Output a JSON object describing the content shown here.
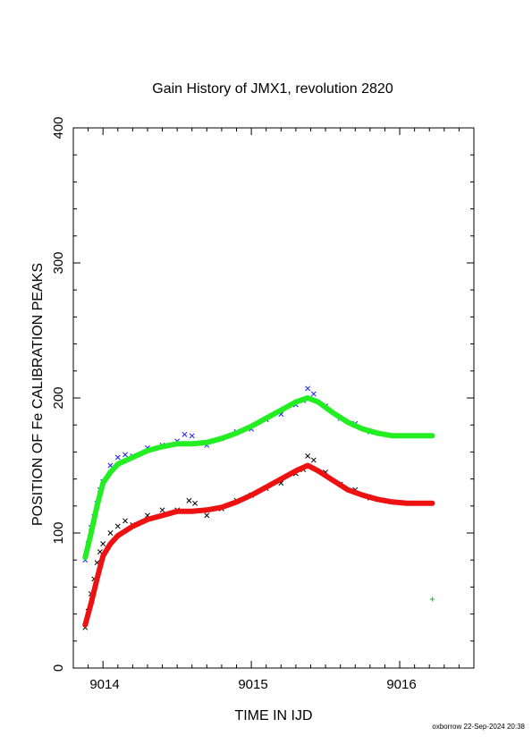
{
  "chart_data": {
    "type": "scatter",
    "title": "Gain History of JMX1, revolution 2820",
    "xlabel": "TIME IN IJD",
    "ylabel": "POSITION OF Fe CALIBRATION PEAKS",
    "xlim": [
      9013.8,
      9016.5
    ],
    "ylim": [
      0,
      400
    ],
    "x_ticks": [
      "9014",
      "9015",
      "9016"
    ],
    "y_ticks": [
      "0",
      "100",
      "200",
      "300",
      "400"
    ],
    "grid": false,
    "series": [
      {
        "kind": "points",
        "marker": "x",
        "color": "#1a1aff",
        "x": [
          9013.88,
          9013.9,
          9013.92,
          9013.94,
          9013.96,
          9013.98,
          9014.0,
          9014.05,
          9014.1,
          9014.15,
          9014.2,
          9014.3,
          9014.4,
          9014.5,
          9014.55,
          9014.6,
          9014.7,
          9014.8,
          9014.9,
          9015.0,
          9015.1,
          9015.2,
          9015.3,
          9015.35,
          9015.38,
          9015.42,
          9015.5,
          9015.6,
          9015.7,
          9015.8
        ],
        "y": [
          80,
          92,
          104,
          112,
          122,
          132,
          138,
          150,
          156,
          158,
          157,
          163,
          165,
          168,
          173,
          172,
          165,
          170,
          175,
          177,
          184,
          188,
          195,
          198,
          207,
          203,
          194,
          185,
          181,
          175
        ]
      },
      {
        "kind": "points",
        "marker": "x",
        "color": "#000000",
        "x": [
          9013.88,
          9013.9,
          9013.92,
          9013.94,
          9013.96,
          9013.98,
          9014.0,
          9014.05,
          9014.1,
          9014.15,
          9014.2,
          9014.3,
          9014.4,
          9014.5,
          9014.58,
          9014.62,
          9014.7,
          9014.8,
          9014.9,
          9015.0,
          9015.1,
          9015.2,
          9015.3,
          9015.35,
          9015.38,
          9015.42,
          9015.5,
          9015.6,
          9015.7,
          9015.8
        ],
        "y": [
          30,
          42,
          55,
          66,
          78,
          86,
          92,
          100,
          105,
          109,
          106,
          113,
          117,
          117,
          124,
          122,
          113,
          118,
          124,
          128,
          133,
          137,
          144,
          147,
          157,
          154,
          145,
          136,
          132,
          126
        ]
      },
      {
        "kind": "points",
        "marker": "plus",
        "color": "#00cc00",
        "x": [
          9016.22
        ],
        "y": [
          51
        ]
      },
      {
        "kind": "line",
        "color": "#22ee22",
        "x": [
          9013.88,
          9013.92,
          9013.96,
          9014.0,
          9014.05,
          9014.1,
          9014.2,
          9014.3,
          9014.4,
          9014.5,
          9014.6,
          9014.7,
          9014.8,
          9014.9,
          9015.0,
          9015.1,
          9015.2,
          9015.3,
          9015.38,
          9015.45,
          9015.55,
          9015.65,
          9015.75,
          9015.85,
          9015.95,
          9016.05,
          9016.15,
          9016.22
        ],
        "y": [
          82,
          100,
          120,
          137,
          145,
          151,
          156,
          161,
          164,
          166,
          166,
          167,
          170,
          174,
          179,
          185,
          191,
          197,
          200,
          197,
          189,
          182,
          177,
          174,
          172,
          172,
          172,
          172
        ]
      },
      {
        "kind": "line",
        "color": "#ee1111",
        "x": [
          9013.88,
          9013.92,
          9013.96,
          9014.0,
          9014.05,
          9014.1,
          9014.2,
          9014.3,
          9014.4,
          9014.5,
          9014.6,
          9014.7,
          9014.8,
          9014.9,
          9015.0,
          9015.1,
          9015.2,
          9015.3,
          9015.38,
          9015.45,
          9015.55,
          9015.65,
          9015.75,
          9015.85,
          9015.95,
          9016.05,
          9016.15,
          9016.22
        ],
        "y": [
          32,
          48,
          66,
          83,
          92,
          98,
          105,
          110,
          113,
          116,
          116,
          117,
          119,
          123,
          128,
          134,
          140,
          146,
          150,
          146,
          139,
          132,
          128,
          125,
          123,
          122,
          122,
          122
        ]
      }
    ]
  },
  "footer": "oxborrow 22-Sep-2024 20:38"
}
